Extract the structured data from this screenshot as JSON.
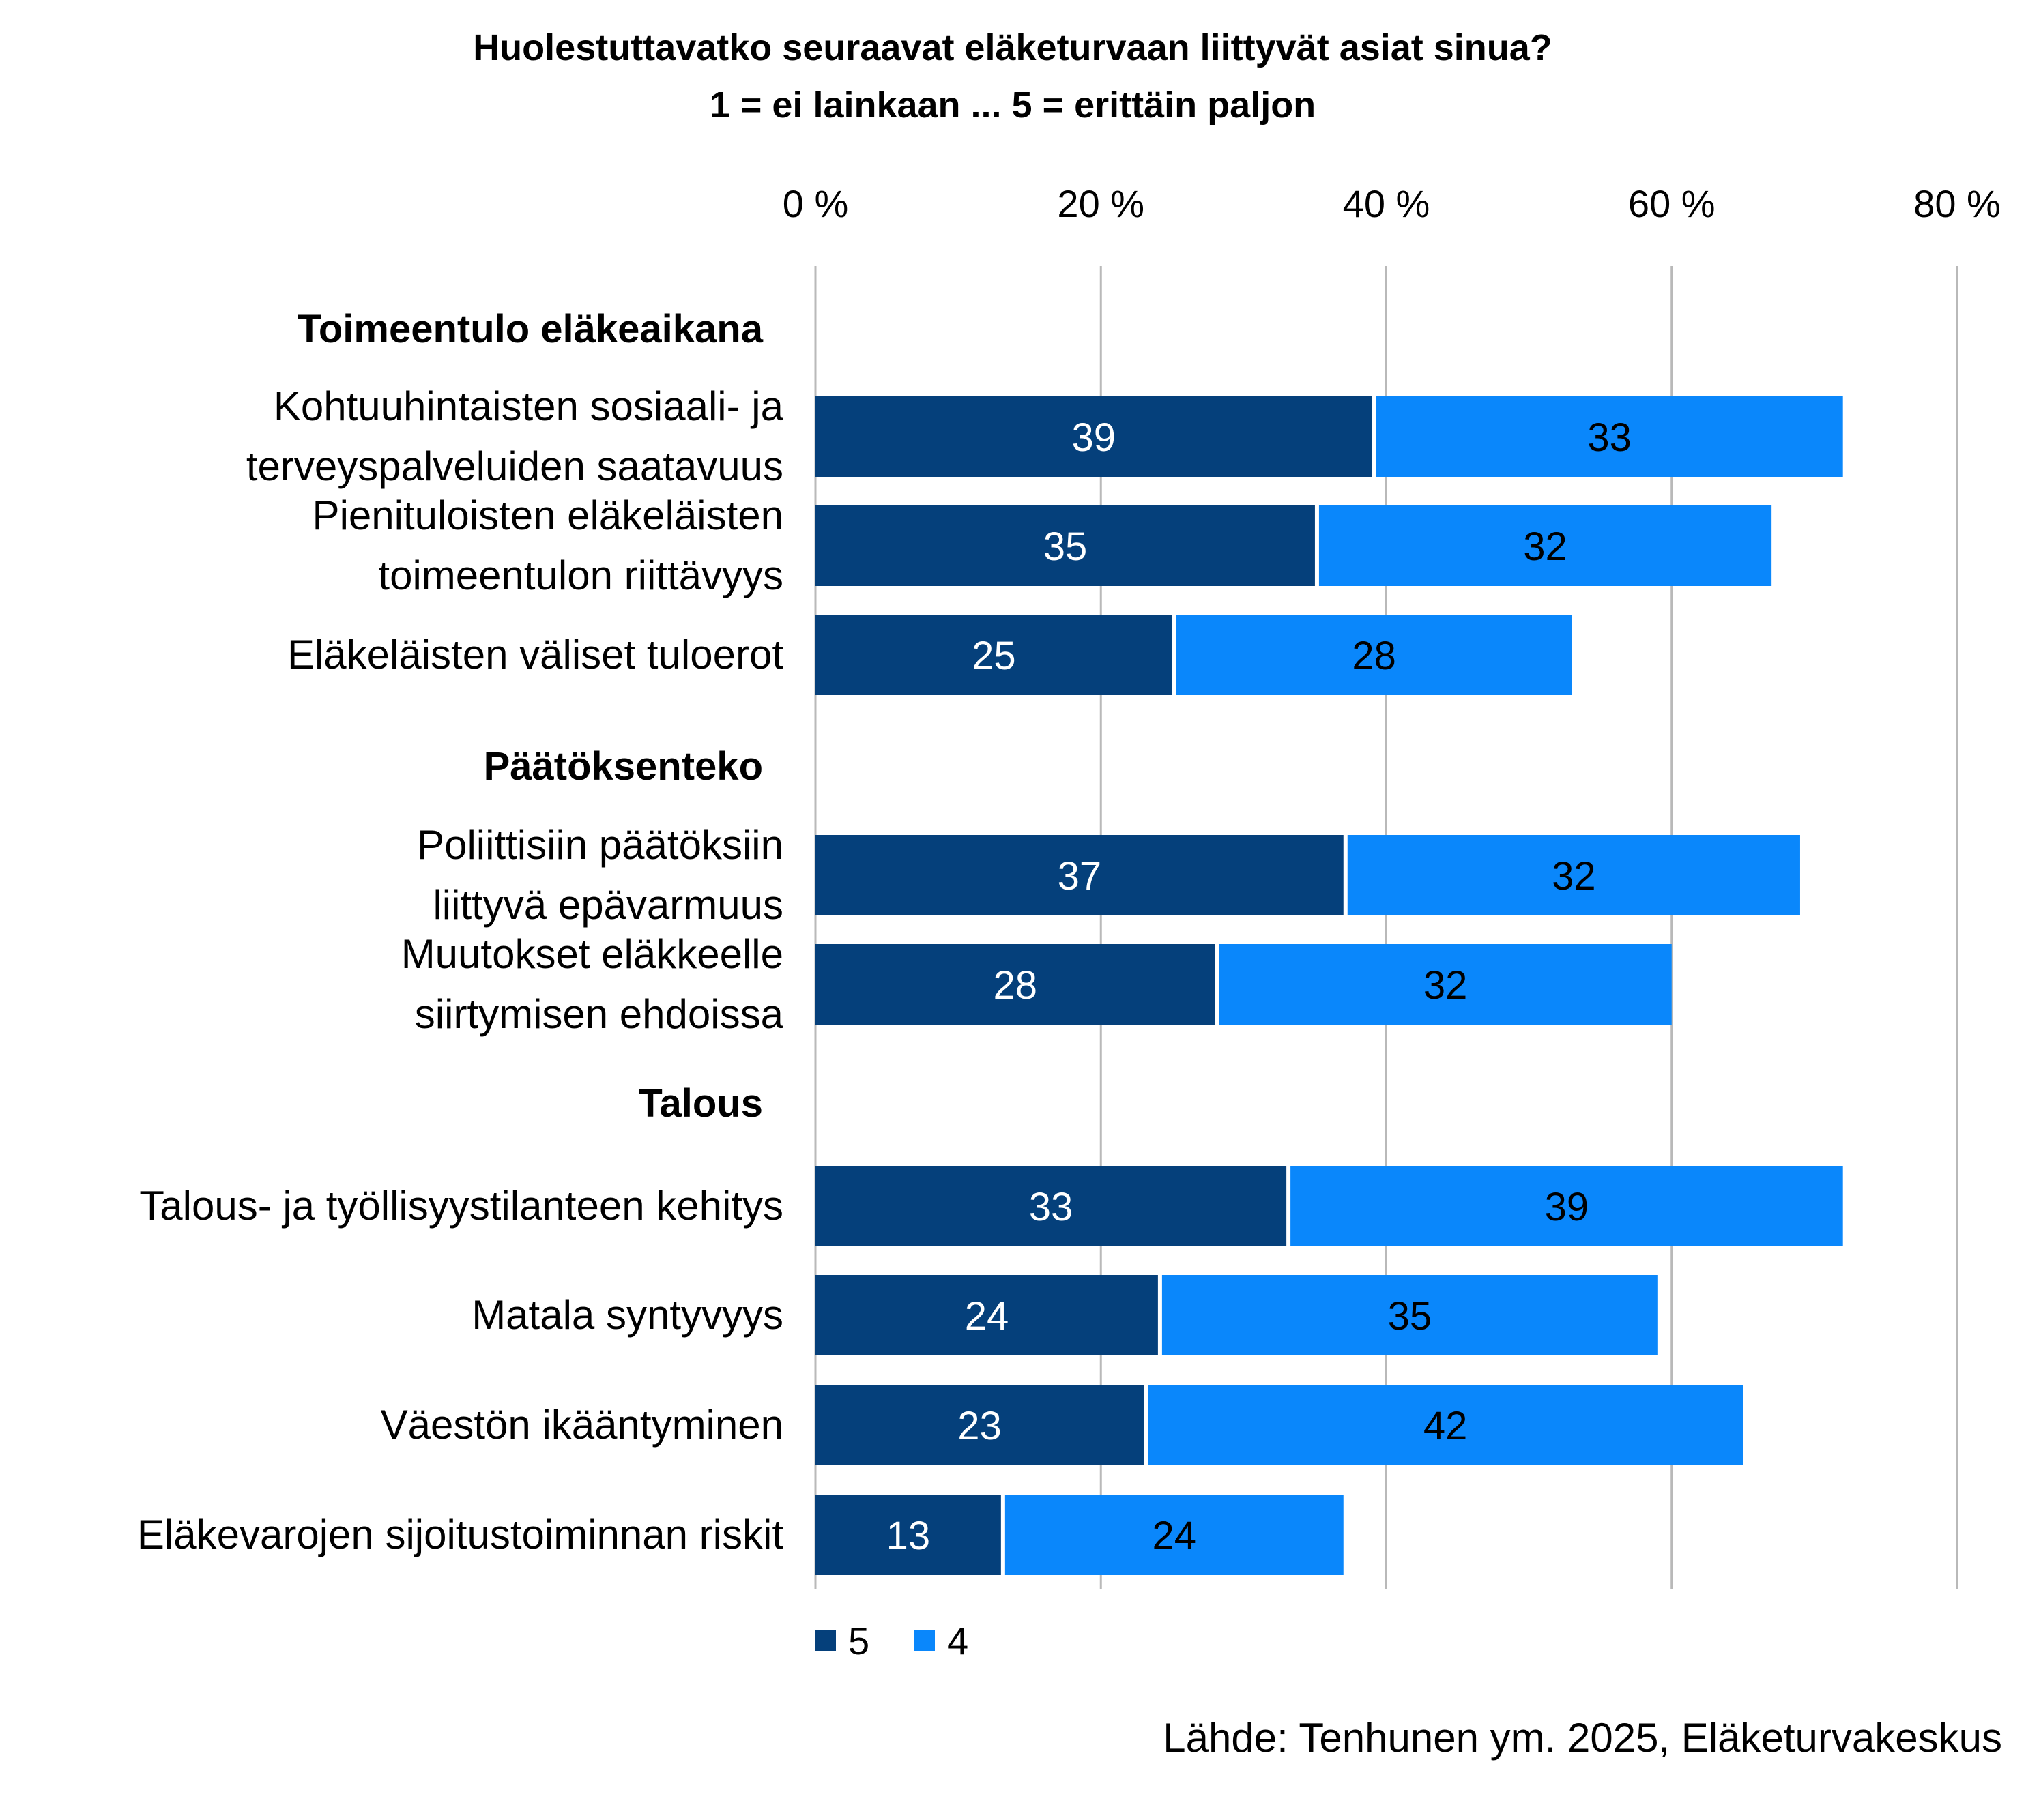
{
  "chart_data": {
    "type": "bar",
    "orientation": "horizontal",
    "stacked": true,
    "title": "Huolestuttavatko seuraavat eläketurvaan liittyvät asiat sinua?",
    "subtitle": "1 = ei lainkaan ... 5 = erittäin paljon",
    "xlim": [
      0,
      80
    ],
    "x_ticks": [
      "0 %",
      "20 %",
      "40 %",
      "60 %",
      "80 %"
    ],
    "grid": true,
    "legend_position": "bottom",
    "colors": {
      "5": "#05407b",
      "4": "#0a87fb"
    },
    "groups": [
      {
        "name": "Toimeentulo eläkeaikana",
        "items": [
          {
            "label": [
              "Kohtuuhintaisten sosiaali- ja",
              "terveyspalveluiden saatavuus"
            ],
            "values": [
              39,
              33
            ]
          },
          {
            "label": [
              "Pienituloisten eläkeläisten",
              "toimeentulon riittävyys"
            ],
            "values": [
              35,
              32
            ]
          },
          {
            "label": [
              "Eläkeläisten väliset tuloerot"
            ],
            "values": [
              25,
              28
            ]
          }
        ]
      },
      {
        "name": "Päätöksenteko",
        "items": [
          {
            "label": [
              "Poliittisiin päätöksiin",
              "liittyvä epävarmuus"
            ],
            "values": [
              37,
              32
            ]
          },
          {
            "label": [
              "Muutokset eläkkeelle",
              "siirtymisen ehdoissa"
            ],
            "values": [
              28,
              32
            ]
          }
        ]
      },
      {
        "name": "Talous",
        "items": [
          {
            "label": [
              "Talous- ja työllisyystilanteen kehitys"
            ],
            "values": [
              33,
              39
            ]
          },
          {
            "label": [
              "Matala syntyvyys"
            ],
            "values": [
              24,
              35
            ]
          },
          {
            "label": [
              "Väestön ikääntyminen"
            ],
            "values": [
              23,
              42
            ]
          },
          {
            "label": [
              "Eläkevarojen sijoitustoiminnan riskit"
            ],
            "values": [
              13,
              24
            ]
          }
        ]
      }
    ],
    "series": [
      {
        "name": "5"
      },
      {
        "name": "4"
      }
    ]
  },
  "source": "Lähde: Tenhunen ym. 2025, Eläketurvakeskus"
}
